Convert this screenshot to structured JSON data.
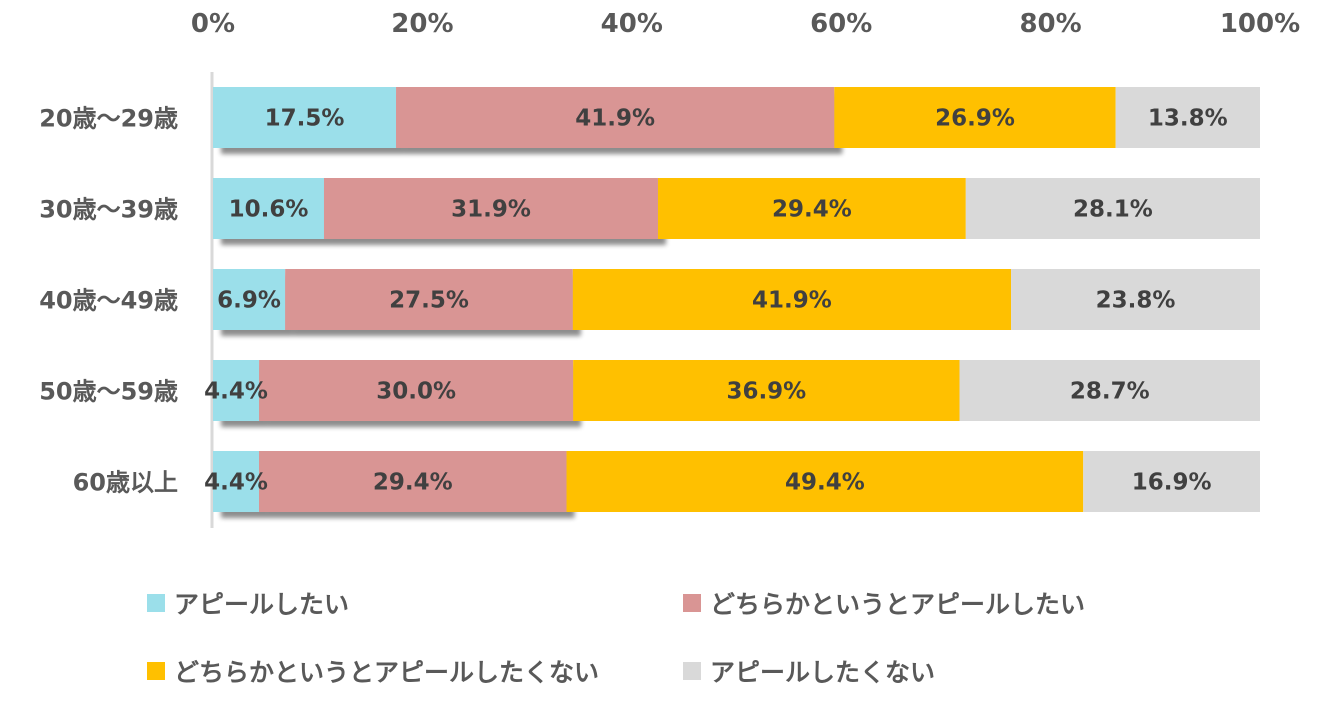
{
  "chart_data": {
    "type": "bar",
    "orientation": "horizontal",
    "stacked": "percent",
    "title": "",
    "xlabel": "",
    "ylabel": "",
    "xlim": [
      0,
      100
    ],
    "x_ticks": [
      "0%",
      "20%",
      "40%",
      "60%",
      "80%",
      "100%"
    ],
    "categories": [
      "20歳～29歳",
      "30歳～39歳",
      "40歳～49歳",
      "50歳～59歳",
      "60歳以上"
    ],
    "series": [
      {
        "name": "アピールしたい",
        "color": "#9BDFEA",
        "values": [
          17.5,
          10.6,
          6.9,
          4.4,
          4.4
        ]
      },
      {
        "name": "どちらかというとアピールしたい",
        "color": "#D99594",
        "values": [
          41.9,
          31.9,
          27.5,
          30.0,
          29.4
        ]
      },
      {
        "name": "どちらかというとアピールしたくない",
        "color": "#FFC000",
        "values": [
          26.9,
          29.4,
          41.9,
          36.9,
          49.4
        ]
      },
      {
        "name": "アピールしたくない",
        "color": "#D9D9D9",
        "values": [
          13.8,
          28.1,
          23.8,
          28.7,
          16.9
        ]
      }
    ],
    "grid": false,
    "legend_position": "bottom"
  }
}
